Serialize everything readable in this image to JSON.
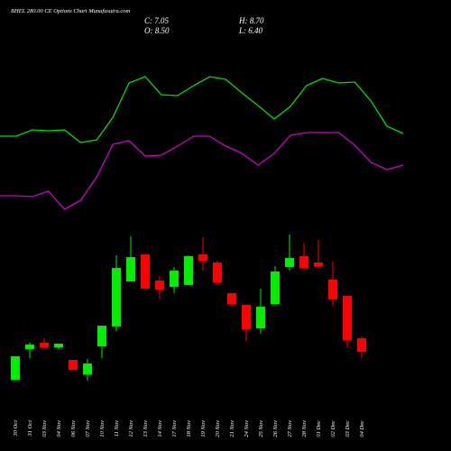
{
  "chart_data": [
    {
      "type": "candlestick",
      "title": "BHEL 280.00 CE Options Chart Munafasutra.com",
      "info": [
        {
          "value": 7.05,
          "label": "C: 7.05"
        },
        {
          "value": 8.7,
          "label": "H: 8.70"
        },
        {
          "value": 8.5,
          "label": "O: 8.50"
        },
        {
          "value": 6.4,
          "label": "L: 6.40"
        }
      ],
      "categories": [
        "30 Oct",
        "31 Oct",
        "03 Nov",
        "04 Nov",
        "06 Nov",
        "07 Nov",
        "10 Nov",
        "11 Nov",
        "12 Nov",
        "13 Nov",
        "14 Nov",
        "17 Nov",
        "18 Nov",
        "19 Nov",
        "20 Nov",
        "21 Nov",
        "24 Nov",
        "25 Nov",
        "26 Nov",
        "27 Nov",
        "28 Nov",
        "01 Dec",
        "02 Dec",
        "03 Dec",
        "04 Dec"
      ],
      "open": [
        4.05,
        7.34,
        8.02,
        7.53,
        6.18,
        4.63,
        7.63,
        9.76,
        14.59,
        17.49,
        14.69,
        14.01,
        14.21,
        17.49,
        16.62,
        13.34,
        12.08,
        9.56,
        12.17,
        16.14,
        17.3,
        16.62,
        14.79,
        13.04,
        8.5
      ],
      "high": [
        6.57,
        8.02,
        8.5,
        7.92,
        6.18,
        6.28,
        9.85,
        17.4,
        19.43,
        17.49,
        15.17,
        16.14,
        17.4,
        19.33,
        16.82,
        13.34,
        12.08,
        13.82,
        16.24,
        19.62,
        18.65,
        19.04,
        16.72,
        13.04,
        8.7
      ],
      "low": [
        4.05,
        6.37,
        7.53,
        7.34,
        5.12,
        3.95,
        6.37,
        9.27,
        14.59,
        13.82,
        12.75,
        13.34,
        14.21,
        15.75,
        14.21,
        11.88,
        8.21,
        8.98,
        12.17,
        15.75,
        15.95,
        16.04,
        11.98,
        7.53,
        6.4
      ],
      "close": [
        6.57,
        7.82,
        7.53,
        7.92,
        5.12,
        5.79,
        9.85,
        16.04,
        17.2,
        13.82,
        13.72,
        15.75,
        17.3,
        16.82,
        14.5,
        12.17,
        9.47,
        11.88,
        15.66,
        17.11,
        16.04,
        16.24,
        12.66,
        8.31,
        7.05
      ],
      "up_color": "#00ee00",
      "down_color": "#ff0000",
      "ylim": [
        3.18,
        20.59
      ]
    },
    {
      "type": "line",
      "series": [
        {
          "color": "#00dd00",
          "values": [
            49,
            49,
            56,
            55,
            56,
            42,
            45,
            70,
            108,
            115,
            95,
            94,
            105,
            115,
            112,
            97,
            83,
            68,
            82,
            105,
            113,
            108,
            109,
            88,
            60,
            52
          ]
        },
        {
          "color": "#cc00cc",
          "values": [
            -17,
            -17,
            -18,
            -12,
            -32,
            -22,
            4,
            40,
            44,
            27,
            28,
            38,
            49,
            49,
            38,
            30,
            17,
            30,
            50,
            53,
            53,
            53,
            39,
            20,
            12,
            17
          ]
        }
      ],
      "ylim": [
        -50,
        200
      ]
    }
  ]
}
